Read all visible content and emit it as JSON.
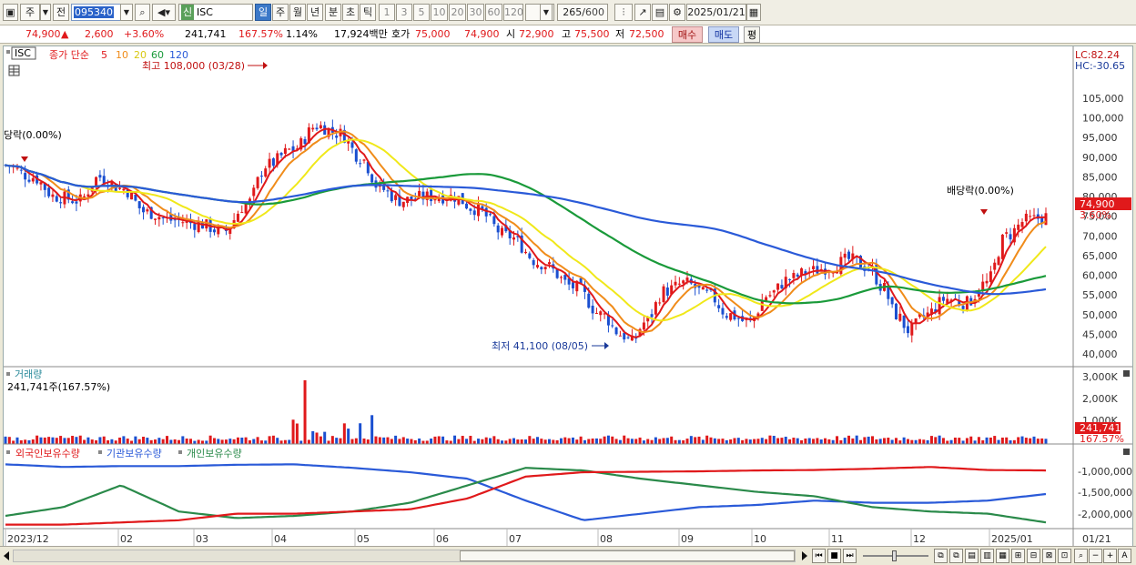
{
  "toolbar": {
    "period_main": "주",
    "period_prev": "전",
    "stock_code": "095340",
    "stock_name": "ISC",
    "stock_market_badge": "신",
    "periods": [
      "일",
      "주",
      "월",
      "년",
      "분",
      "초",
      "틱"
    ],
    "active_period": "일",
    "intervals": [
      "1",
      "3",
      "5",
      "10",
      "20",
      "30",
      "60",
      "120"
    ],
    "bar_count": "265",
    "bar_count_max": "600",
    "date": "2025/01/21"
  },
  "quote": {
    "price": "74,900",
    "change": "2,600",
    "change_pct": "+3.60%",
    "volume": "241,741",
    "volume_ratio": "167.57%",
    "turnover": "1.14%",
    "amount": "17,924백만",
    "ask_label": "호가",
    "ask": "75,000",
    "bid": "74,900",
    "open_label": "시",
    "open": "72,900",
    "high_label": "고",
    "high": "75,500",
    "low_label": "저",
    "low": "72,500",
    "buy_btn": "매수",
    "sell_btn": "매도",
    "eval_btn": "평"
  },
  "legend": {
    "name": "ISC",
    "ma_label": "종가 단순",
    "ma_periods": [
      "5",
      "10",
      "20",
      "60",
      "120"
    ],
    "ma_colors": [
      "#e0191b",
      "#f08c1a",
      "#f0e81a",
      "#1a9a3a",
      "#2a5ad8"
    ]
  },
  "annotations": {
    "high": "최고 108,000 (03/28)",
    "low": "최저 41,100 (08/05)",
    "dividend_left": "당락(0.00%)",
    "dividend_right": "배당락(0.00%)"
  },
  "price_axis": {
    "lc": "LC:82.24",
    "hc": "HC:-30.65",
    "ticks": [
      "105,000",
      "100,000",
      "95,000",
      "90,000",
      "85,000",
      "80,000",
      "75,000",
      "70,000",
      "65,000",
      "60,000",
      "55,000",
      "50,000",
      "45,000",
      "40,000"
    ],
    "current": "74,900",
    "current_pct": "3.60%"
  },
  "volume_panel": {
    "title": "거래량",
    "readout": "241,741주(167.57%)",
    "ticks": [
      "3,000K",
      "2,000K",
      "1,000K"
    ],
    "current": "241,741",
    "current_pct": "167.57%"
  },
  "holding_panel": {
    "series": [
      "외국인보유수량",
      "기관보유수량",
      "개인보유수량"
    ],
    "colors": [
      "#e0191b",
      "#2a5ad8",
      "#2a8a4a"
    ],
    "ticks": [
      "-1,000,000",
      "-1,500,000",
      "-2,000,000"
    ]
  },
  "x_axis": {
    "labels": [
      "2023/12",
      "02",
      "03",
      "04",
      "05",
      "06",
      "07",
      "08",
      "09",
      "10",
      "11",
      "12",
      "2025/01"
    ],
    "right_label": "01/21"
  },
  "colors": {
    "up": "#e0191b",
    "down": "#1a4fd0",
    "accent": "#3b78c8"
  }
}
